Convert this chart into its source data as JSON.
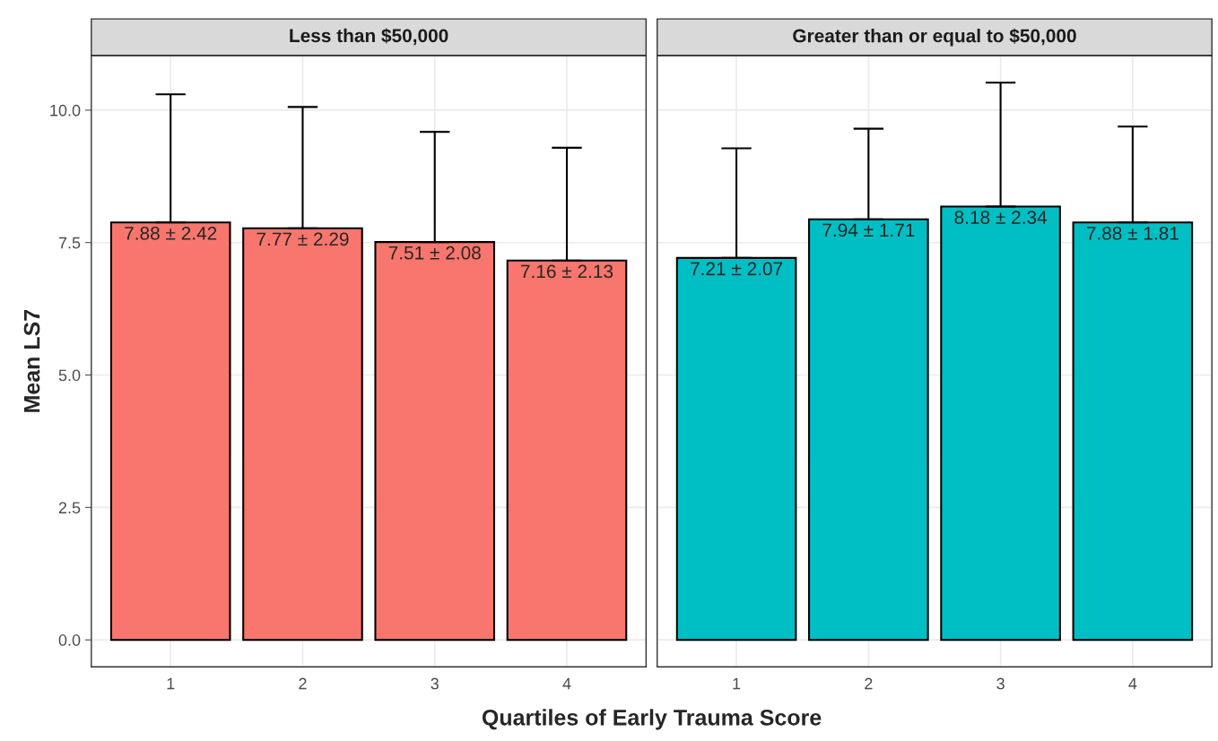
{
  "chart_data": [
    {
      "type": "bar",
      "title": "Less than $50,000",
      "ylabel": "Mean LS7",
      "xlabel": "Quartiles of Early Trauma Score",
      "categories": [
        "1",
        "2",
        "3",
        "4"
      ],
      "values": [
        7.88,
        7.77,
        7.51,
        7.16
      ],
      "color": "#f8766d",
      "errors": [
        [
          7.88,
          10.3
        ],
        [
          7.77,
          10.06
        ],
        [
          7.51,
          9.59
        ],
        [
          7.16,
          9.29
        ]
      ],
      "value_labels": [
        "7.88 ± 2.42",
        "7.77 ± 2.29",
        "7.51 ± 2.08",
        "7.16 ± 2.13"
      ],
      "ylim": [
        -0.51,
        11.03
      ],
      "yticks": [
        {
          "value": 0,
          "label": "0.0"
        },
        {
          "value": 2.5,
          "label": "2.5"
        },
        {
          "value": 5,
          "label": "5.0"
        },
        {
          "value": 7.5,
          "label": "7.5"
        },
        {
          "value": 10,
          "label": "10.0"
        }
      ],
      "grid": true
    },
    {
      "type": "bar",
      "title": "Greater than or equal to $50,000",
      "categories": [
        "1",
        "2",
        "3",
        "4"
      ],
      "values": [
        7.21,
        7.94,
        8.18,
        7.88
      ],
      "color": "#00bfc4",
      "errors": [
        [
          7.21,
          9.28
        ],
        [
          7.94,
          9.65
        ],
        [
          8.18,
          10.52
        ],
        [
          7.88,
          9.69
        ]
      ],
      "value_labels": [
        "7.21 ± 2.07",
        "7.94 ± 1.71",
        "8.18 ± 2.34",
        "7.88 ± 1.81"
      ],
      "ylim": [
        -0.51,
        11.03
      ],
      "yticks": [
        0,
        2.5,
        5,
        7.5,
        10
      ],
      "grid": true,
      "tick_labels": "x"
    }
  ]
}
